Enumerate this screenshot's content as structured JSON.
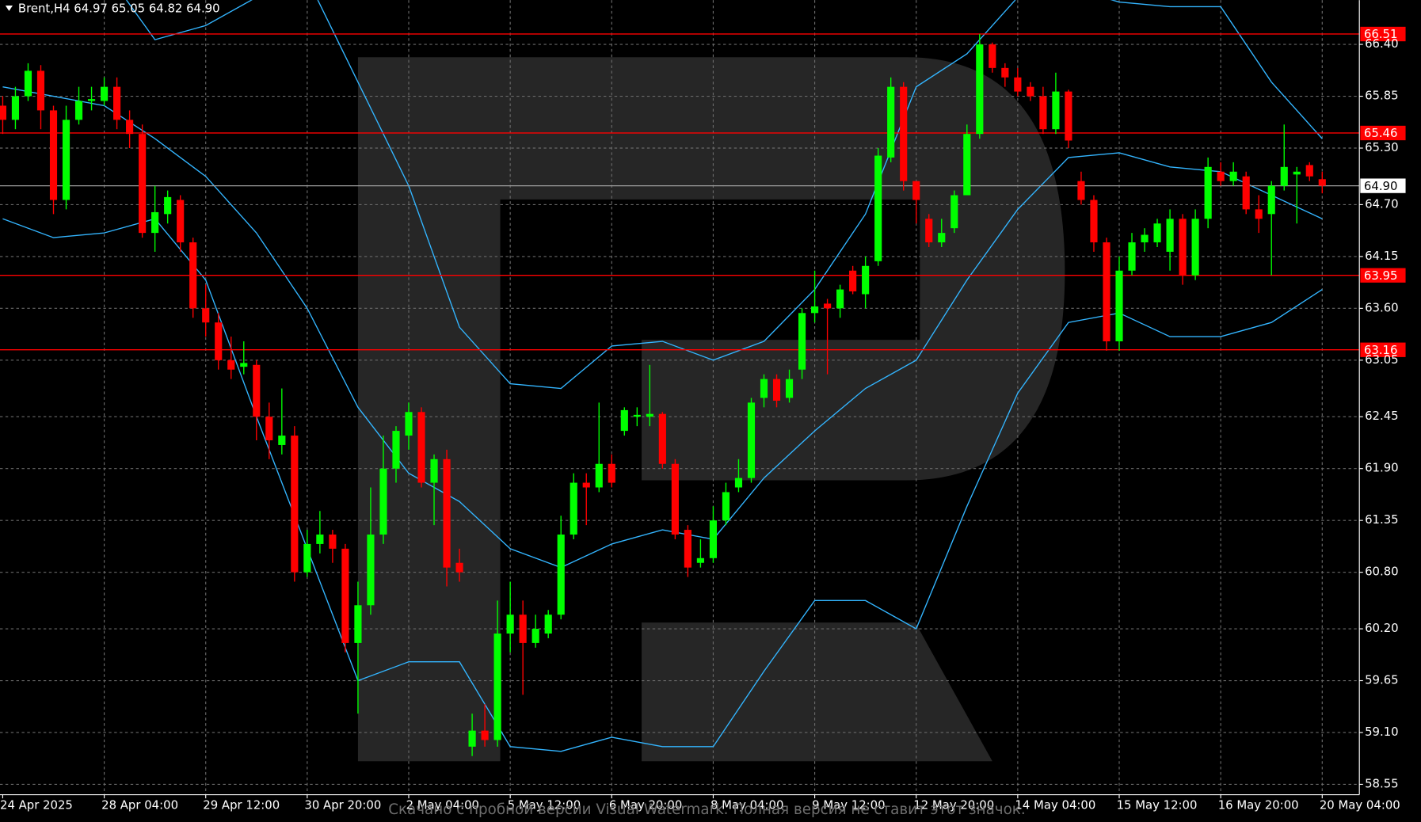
{
  "chart_data": {
    "type": "candlestick",
    "title": "Brent,H4  64.97 65.05 64.82 64.90",
    "watermark": "Скачано с пробной версии Visual Watermark. Полная версия не ставит этот значок.",
    "categories": [
      "24 Apr 2025",
      null,
      null,
      null,
      null,
      null,
      null,
      null,
      "28 Apr 04:00",
      null,
      null,
      null,
      null,
      null,
      null,
      null,
      "29 Apr 12:00",
      null,
      null,
      null,
      null,
      null,
      null,
      null,
      "30 Apr 20:00",
      null,
      null,
      null,
      null,
      null,
      null,
      null,
      "2 May 04:00",
      null,
      null,
      null,
      null,
      null,
      null,
      null,
      "5 May 12:00",
      null,
      null,
      null,
      null,
      null,
      null,
      null,
      "6 May 20:00",
      null,
      null,
      null,
      null,
      null,
      null,
      null,
      "8 May 04:00",
      null,
      null,
      null,
      null,
      null,
      null,
      null,
      "9 May 12:00",
      null,
      null,
      null,
      null,
      null,
      null,
      null,
      "12 May 20:00",
      null,
      null,
      null,
      null,
      null,
      null,
      null,
      "14 May 04:00",
      null,
      null,
      null,
      null,
      null,
      null,
      null,
      "15 May 12:00",
      null,
      null,
      null,
      null,
      null,
      null,
      null,
      "16 May 20:00",
      null,
      null,
      null,
      null,
      null,
      null,
      null,
      "20 May 04:00"
    ],
    "open": [
      65.75,
      65.6,
      65.85,
      66.12,
      65.7,
      64.75,
      65.6,
      65.8,
      65.8,
      65.95,
      65.6,
      65.45,
      64.4,
      64.6,
      64.75,
      64.3,
      63.6,
      63.45,
      63.05,
      62.98,
      63.0,
      62.45,
      62.15,
      62.25,
      60.8,
      61.1,
      61.2,
      61.05,
      60.05,
      60.45,
      61.2,
      61.9,
      62.25,
      62.5,
      61.75,
      62.0,
      60.9,
      58.95,
      59.12,
      59.02,
      60.15,
      60.35,
      60.05,
      60.15,
      60.35,
      61.2,
      61.75,
      61.7,
      61.95,
      62.3,
      62.45,
      62.45,
      62.48,
      61.95,
      61.25,
      60.9,
      60.95,
      61.35,
      61.7,
      61.8,
      62.65,
      62.85,
      62.65,
      62.95,
      63.55,
      63.65,
      63.6,
      64.0,
      63.75,
      64.1,
      65.2,
      65.95,
      64.95,
      64.55,
      64.3,
      64.45,
      64.8,
      65.45,
      66.4,
      66.15,
      66.05,
      65.95,
      65.85,
      65.5,
      65.9,
      64.95,
      64.75,
      64.3,
      63.25,
      64.0,
      64.3,
      64.3,
      64.2,
      64.55,
      63.95,
      64.55,
      65.05,
      64.95,
      65.0,
      64.65,
      64.6,
      64.9,
      65.02,
      65.12,
      64.97
    ],
    "high": [
      65.85,
      65.95,
      66.2,
      66.18,
      65.75,
      65.75,
      65.95,
      65.95,
      66.05,
      66.05,
      65.7,
      65.55,
      64.9,
      64.85,
      64.8,
      64.35,
      63.85,
      63.55,
      63.3,
      63.25,
      63.05,
      62.6,
      62.75,
      62.35,
      61.25,
      61.45,
      61.25,
      61.1,
      60.7,
      61.7,
      62.25,
      62.35,
      62.6,
      62.55,
      62.05,
      62.1,
      61.05,
      59.3,
      59.4,
      60.5,
      60.7,
      60.5,
      60.35,
      60.4,
      61.4,
      61.85,
      61.85,
      62.6,
      62.05,
      62.55,
      62.55,
      63.0,
      62.5,
      62.0,
      61.3,
      61.15,
      61.5,
      61.75,
      62.0,
      62.65,
      62.9,
      62.9,
      62.95,
      63.6,
      64.0,
      63.7,
      63.85,
      64.05,
      64.15,
      65.3,
      66.05,
      66.0,
      64.95,
      64.6,
      64.55,
      64.85,
      65.55,
      66.51,
      66.42,
      66.2,
      66.15,
      66.0,
      65.95,
      66.1,
      65.92,
      65.05,
      64.8,
      64.35,
      64.15,
      64.4,
      64.45,
      64.55,
      64.65,
      64.6,
      64.65,
      65.2,
      65.15,
      65.15,
      65.05,
      64.8,
      64.95,
      65.55,
      65.1,
      65.15,
      65.05
    ],
    "low": [
      65.45,
      65.5,
      65.8,
      65.5,
      64.6,
      64.65,
      65.55,
      65.7,
      65.75,
      65.5,
      65.3,
      64.35,
      64.2,
      64.5,
      64.2,
      63.5,
      63.3,
      62.95,
      62.85,
      62.9,
      62.2,
      62.0,
      62.05,
      60.7,
      60.75,
      61.0,
      60.9,
      59.95,
      59.3,
      60.35,
      61.1,
      61.75,
      62.1,
      61.7,
      61.3,
      60.65,
      60.7,
      58.85,
      58.95,
      58.95,
      59.95,
      59.5,
      60.0,
      60.1,
      60.3,
      61.15,
      61.3,
      61.65,
      61.7,
      62.25,
      62.35,
      62.35,
      61.9,
      61.15,
      60.75,
      60.85,
      60.9,
      61.3,
      61.65,
      61.75,
      62.55,
      62.55,
      62.6,
      62.85,
      63.45,
      62.9,
      63.5,
      63.75,
      63.6,
      64.05,
      65.15,
      64.85,
      64.5,
      64.25,
      64.25,
      64.4,
      64.8,
      65.4,
      66.1,
      65.95,
      65.85,
      65.8,
      65.45,
      65.45,
      65.3,
      64.7,
      64.2,
      63.15,
      63.15,
      63.95,
      64.2,
      64.25,
      64.0,
      63.85,
      63.9,
      64.45,
      64.9,
      64.9,
      64.6,
      64.4,
      63.95,
      64.85,
      64.5,
      64.95,
      64.82
    ],
    "close": [
      65.6,
      65.85,
      66.12,
      65.7,
      64.75,
      65.6,
      65.8,
      65.82,
      65.95,
      65.6,
      65.45,
      64.4,
      64.62,
      64.78,
      64.3,
      63.6,
      63.45,
      63.05,
      62.95,
      63.02,
      62.45,
      62.2,
      62.25,
      60.8,
      61.1,
      61.2,
      61.05,
      60.05,
      60.45,
      61.2,
      61.9,
      62.3,
      62.5,
      61.75,
      62.0,
      60.85,
      60.8,
      59.12,
      59.02,
      60.15,
      60.35,
      60.05,
      60.2,
      60.35,
      61.2,
      61.75,
      61.7,
      61.95,
      61.75,
      62.52,
      62.47,
      62.48,
      61.95,
      61.2,
      60.85,
      60.95,
      61.35,
      61.65,
      61.8,
      62.6,
      62.85,
      62.62,
      62.85,
      63.55,
      63.62,
      63.6,
      63.8,
      63.78,
      64.05,
      65.22,
      65.95,
      64.95,
      64.75,
      64.3,
      64.4,
      64.8,
      65.45,
      66.4,
      66.15,
      66.05,
      65.9,
      65.85,
      65.5,
      65.9,
      65.38,
      64.75,
      64.3,
      63.25,
      64.0,
      64.3,
      64.38,
      64.5,
      64.55,
      63.95,
      64.55,
      65.1,
      64.95,
      65.05,
      64.65,
      64.55,
      64.9,
      65.1,
      65.05,
      65.0,
      64.9
    ],
    "up_color": "#00ff00",
    "down_color": "#ff0000",
    "bands": {
      "color": "#33b5ff",
      "x": [
        0,
        4,
        8,
        12,
        16,
        20,
        24,
        28,
        32,
        36,
        40,
        44,
        48,
        52,
        56,
        60,
        64,
        68,
        72,
        76,
        80,
        84,
        88,
        92,
        96,
        100,
        104
      ],
      "upper": [
        67.5,
        67.4,
        67.2,
        66.45,
        66.6,
        66.9,
        67.1,
        66.0,
        64.9,
        63.4,
        62.8,
        62.75,
        63.2,
        63.25,
        63.05,
        63.25,
        63.8,
        64.6,
        65.95,
        66.3,
        66.9,
        67.0,
        66.85,
        66.8,
        66.8,
        66.0,
        65.4
      ],
      "middle": [
        65.95,
        65.85,
        65.75,
        65.4,
        65.0,
        64.4,
        63.6,
        62.55,
        61.85,
        61.55,
        61.05,
        60.85,
        61.1,
        61.25,
        61.15,
        61.8,
        62.3,
        62.75,
        63.05,
        63.9,
        64.65,
        65.2,
        65.25,
        65.1,
        65.05,
        64.8,
        64.55
      ],
      "lower": [
        64.55,
        64.35,
        64.4,
        64.55,
        63.9,
        62.45,
        61.05,
        59.65,
        59.85,
        59.85,
        58.95,
        58.9,
        59.05,
        58.95,
        58.95,
        59.75,
        60.5,
        60.5,
        60.2,
        61.5,
        62.7,
        63.45,
        63.55,
        63.3,
        63.3,
        63.45,
        63.8
      ]
    },
    "levels": [
      {
        "value": 66.51,
        "label": "66.51"
      },
      {
        "value": 65.46,
        "label": "65.46"
      },
      {
        "value": 63.95,
        "label": "63.95"
      },
      {
        "value": 63.16,
        "label": "63.16"
      }
    ],
    "level_color": "#ff0000",
    "current_price": {
      "value": 64.9,
      "label": "64.90"
    },
    "ylim": [
      58.44,
      66.87
    ],
    "yticks": [
      {
        "value": 66.4,
        "label": "66.40"
      },
      {
        "value": 65.85,
        "label": "65.85"
      },
      {
        "value": 65.3,
        "label": "65.30"
      },
      {
        "value": 64.7,
        "label": "64.70"
      },
      {
        "value": 64.15,
        "label": "64.15"
      },
      {
        "value": 63.6,
        "label": "63.60"
      },
      {
        "value": 63.05,
        "label": "63.05"
      },
      {
        "value": 62.45,
        "label": "62.45"
      },
      {
        "value": 61.9,
        "label": "61.90"
      },
      {
        "value": 61.35,
        "label": "61.35"
      },
      {
        "value": 60.8,
        "label": "60.80"
      },
      {
        "value": 60.2,
        "label": "60.20"
      },
      {
        "value": 59.65,
        "label": "59.65"
      },
      {
        "value": 59.1,
        "label": "59.10"
      },
      {
        "value": 58.55,
        "label": "58.55"
      }
    ],
    "grid": true
  }
}
